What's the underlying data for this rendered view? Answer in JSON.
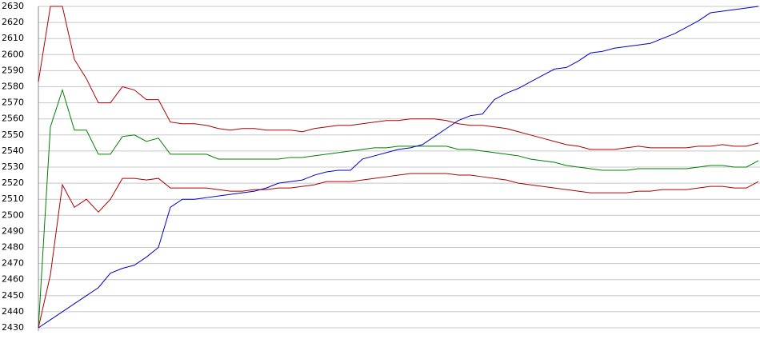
{
  "chart_data": {
    "type": "line",
    "categories": [
      null,
      null,
      null,
      null,
      null,
      null,
      null,
      null,
      null,
      null,
      null,
      null,
      null,
      null,
      null,
      null,
      null,
      null,
      null,
      null,
      null,
      null,
      null,
      null,
      null,
      null,
      null,
      null,
      null,
      null,
      null,
      null,
      null,
      null,
      null,
      null,
      null,
      null,
      null,
      null,
      null,
      null,
      null,
      null,
      null,
      null,
      null,
      null,
      null,
      null,
      null,
      null,
      null,
      null,
      null,
      null,
      null,
      null,
      null,
      null,
      null
    ],
    "series": [
      {
        "color": "#b00000",
        "values": [
          2583,
          2630,
          2630,
          2597,
          2585,
          2570,
          2570,
          2580,
          2578,
          2572,
          2572,
          2558,
          2557,
          2557,
          2556,
          2554,
          2553,
          2554,
          2554,
          2553,
          2553,
          2553,
          2552,
          2554,
          2555,
          2556,
          2556,
          2557,
          2558,
          2559,
          2559,
          2560,
          2560,
          2560,
          2559,
          2557,
          2556,
          2556,
          2555,
          2554,
          2552,
          2550,
          2548,
          2546,
          2544,
          2543,
          2541,
          2541,
          2541,
          2542,
          2543,
          2542,
          2542,
          2542,
          2542,
          2543,
          2543,
          2544,
          2543,
          2543,
          2545
        ]
      },
      {
        "color": "#008000",
        "values": [
          2430,
          2555,
          2578,
          2553,
          2553,
          2538,
          2538,
          2549,
          2550,
          2546,
          2548,
          2538,
          2538,
          2538,
          2538,
          2535,
          2535,
          2535,
          2535,
          2535,
          2535,
          2536,
          2536,
          2537,
          2538,
          2539,
          2540,
          2541,
          2542,
          2542,
          2543,
          2543,
          2543,
          2543,
          2543,
          2541,
          2541,
          2540,
          2539,
          2538,
          2537,
          2535,
          2534,
          2533,
          2531,
          2530,
          2529,
          2528,
          2528,
          2528,
          2529,
          2529,
          2529,
          2529,
          2529,
          2530,
          2531,
          2531,
          2530,
          2530,
          2534
        ]
      },
      {
        "color": "#b00000",
        "values": [
          2430,
          2463,
          2519,
          2505,
          2510,
          2502,
          2510,
          2523,
          2523,
          2522,
          2523,
          2517,
          2517,
          2517,
          2517,
          2516,
          2515,
          2515,
          2516,
          2516,
          2517,
          2517,
          2518,
          2519,
          2521,
          2521,
          2521,
          2522,
          2523,
          2524,
          2525,
          2526,
          2526,
          2526,
          2526,
          2525,
          2525,
          2524,
          2523,
          2522,
          2520,
          2519,
          2518,
          2517,
          2516,
          2515,
          2514,
          2514,
          2514,
          2514,
          2515,
          2515,
          2516,
          2516,
          2516,
          2517,
          2518,
          2518,
          2517,
          2517,
          2521
        ]
      },
      {
        "color": "#0000c8",
        "values": [
          2430,
          2435,
          2440,
          2445,
          2450,
          2455,
          2464,
          2467,
          2469,
          2474,
          2480,
          2505,
          2510,
          2510,
          2511,
          2512,
          2513,
          2514,
          2515,
          2517,
          2520,
          2521,
          2522,
          2525,
          2527,
          2528,
          2528,
          2535,
          2537,
          2539,
          2541,
          2542,
          2544,
          2549,
          2554,
          2559,
          2562,
          2563,
          2572,
          2576,
          2579,
          2583,
          2587,
          2591,
          2592,
          2596,
          2601,
          2602,
          2604,
          2605,
          2606,
          2607,
          2610,
          2613,
          2617,
          2621,
          2626,
          2627,
          2628,
          2629,
          2630
        ]
      }
    ],
    "ylim": [
      2430,
      2630
    ],
    "yticks": [
      2430,
      2440,
      2450,
      2460,
      2470,
      2480,
      2490,
      2500,
      2510,
      2520,
      2530,
      2540,
      2550,
      2560,
      2570,
      2580,
      2590,
      2600,
      2610,
      2620,
      2630
    ],
    "grid": true
  }
}
